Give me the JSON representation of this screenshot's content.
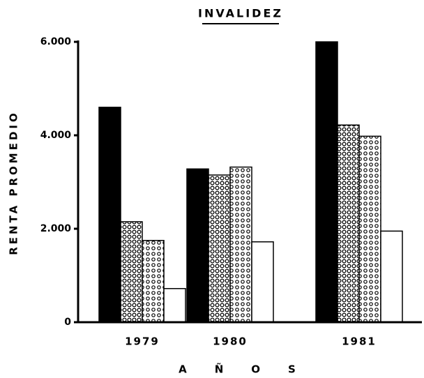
{
  "chart_data": {
    "type": "bar",
    "title": "INVALIDEZ",
    "ylabel": "RENTA PROMEDIO",
    "xlabel": "AÑOS",
    "categories": [
      "1979",
      "1980",
      "1981"
    ],
    "series": [
      {
        "color": "#000000",
        "values": [
          4600,
          3280,
          6000
        ]
      },
      {
        "color": "#000000",
        "pattern": "circles-dense",
        "values": [
          2150,
          3150,
          4220
        ]
      },
      {
        "color": "#000000",
        "pattern": "circles",
        "values": [
          1750,
          3320,
          3980
        ]
      },
      {
        "color": "#ffffff",
        "values": [
          720,
          1720,
          1950
        ]
      }
    ],
    "ylim": [
      0,
      6000
    ],
    "yticks": [
      0,
      {
        "value": 2000,
        "label": "2.000"
      },
      {
        "value": 4000,
        "label": "4.000"
      },
      {
        "value": 6000,
        "label": "6.000"
      }
    ],
    "grid": false
  }
}
